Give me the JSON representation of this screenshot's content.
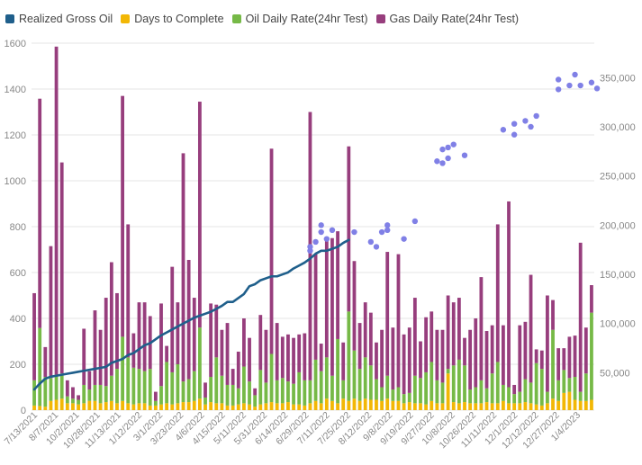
{
  "colors": {
    "gross_oil": "#1f5f8b",
    "days_to_complete": "#f2b705",
    "oil_rate": "#76b947",
    "gas_rate": "#973e7d",
    "points": "#8080e6",
    "grid": "#e6e6e6",
    "tick": "#888888"
  },
  "legend": [
    {
      "label": "Realized Gross Oil",
      "color": "#1f5f8b"
    },
    {
      "label": "Days to Complete",
      "color": "#f2b705"
    },
    {
      "label": "Oil Daily Rate(24hr Test)",
      "color": "#76b947"
    },
    {
      "label": "Gas Daily Rate(24hr Test)",
      "color": "#973e7d"
    }
  ],
  "chart_data": {
    "type": "bar",
    "stacked": true,
    "legend_position": "top-left",
    "grid": true,
    "y_left": {
      "min": 0,
      "max": 1600,
      "ticks": [
        0,
        200,
        400,
        600,
        800,
        1000,
        1200,
        1400,
        1600
      ]
    },
    "y_right": {
      "min": 12000,
      "max": 385000,
      "ticks": [
        "50,000",
        "100,000",
        "150,000",
        "200,000",
        "250,000",
        "300,000",
        "350,000"
      ],
      "tick_values": [
        50000,
        100000,
        150000,
        200000,
        250000,
        300000,
        350000
      ]
    },
    "x_tick_labels": [
      "7/13/2021",
      "8/7/2021",
      "10/2/2021",
      "10/28/2021",
      "11/13/2021",
      "1/12/2022",
      "3/1/2022",
      "3/23/2022",
      "4/6/2022",
      "4/15/2022",
      "5/11/2022",
      "5/31/2022",
      "6/14/2022",
      "6/29/2022",
      "7/11/2022",
      "7/25/2022",
      "8/12/2022",
      "9/8/2022",
      "9/19/2022",
      "9/27/2022",
      "10/8/2022",
      "10/26/2022",
      "11/11/2022",
      "12/1/2022",
      "12/12/2022",
      "12/27/2022",
      "1/4/2023"
    ],
    "bars": [
      {
        "days": 20,
        "oil": 110,
        "gas": 380
      },
      {
        "days": 18,
        "oil": 340,
        "gas": 1000
      },
      {
        "days": 15,
        "oil": 130,
        "gas": 130
      },
      {
        "days": 40,
        "oil": 100,
        "gas": 575
      },
      {
        "days": 45,
        "oil": 110,
        "gas": 1430
      },
      {
        "days": 50,
        "oil": 110,
        "gas": 920
      },
      {
        "days": 30,
        "oil": 30,
        "gas": 70
      },
      {
        "days": 30,
        "oil": 20,
        "gas": 50
      },
      {
        "days": 25,
        "oil": 20,
        "gas": 20
      },
      {
        "days": 30,
        "oil": 80,
        "gas": 245
      },
      {
        "days": 40,
        "oil": 50,
        "gas": 80
      },
      {
        "days": 40,
        "oil": 70,
        "gas": 325
      },
      {
        "days": 30,
        "oil": 80,
        "gas": 240
      },
      {
        "days": 35,
        "oil": 70,
        "gas": 385
      },
      {
        "days": 40,
        "oil": 110,
        "gas": 495
      },
      {
        "days": 30,
        "oil": 150,
        "gas": 330
      },
      {
        "days": 40,
        "oil": 280,
        "gas": 1050
      },
      {
        "days": 30,
        "oil": 200,
        "gas": 580
      },
      {
        "days": 25,
        "oil": 160,
        "gas": 150
      },
      {
        "days": 30,
        "oil": 150,
        "gas": 290
      },
      {
        "days": 30,
        "oil": 140,
        "gas": 300
      },
      {
        "days": 20,
        "oil": 160,
        "gas": 230
      },
      {
        "days": 20,
        "oil": 20,
        "gas": 40
      },
      {
        "days": 25,
        "oil": 80,
        "gas": 360
      },
      {
        "days": 30,
        "oil": 180,
        "gas": 70
      },
      {
        "days": 25,
        "oil": 140,
        "gas": 460
      },
      {
        "days": 30,
        "oil": 170,
        "gas": 270
      },
      {
        "days": 35,
        "oil": 90,
        "gas": 995
      },
      {
        "days": 35,
        "oil": 100,
        "gas": 520
      },
      {
        "days": 40,
        "oil": 130,
        "gas": 320
      },
      {
        "days": 50,
        "oil": 310,
        "gas": 985
      },
      {
        "days": 25,
        "oil": 30,
        "gas": 65
      },
      {
        "days": 35,
        "oil": 110,
        "gas": 320
      },
      {
        "days": 30,
        "oil": 200,
        "gas": 230
      },
      {
        "days": 30,
        "oil": 120,
        "gas": 200
      },
      {
        "days": 20,
        "oil": 90,
        "gas": 270
      },
      {
        "days": 20,
        "oil": 90,
        "gas": 70
      },
      {
        "days": 25,
        "oil": 70,
        "gas": 160
      },
      {
        "days": 30,
        "oil": 160,
        "gas": 210
      },
      {
        "days": 25,
        "oil": 100,
        "gas": 190
      },
      {
        "days": 15,
        "oil": 50,
        "gas": 30
      },
      {
        "days": 25,
        "oil": 150,
        "gas": 240
      },
      {
        "days": 30,
        "oil": 90,
        "gas": 230
      },
      {
        "days": 35,
        "oil": 210,
        "gas": 895
      },
      {
        "days": 30,
        "oil": 100,
        "gas": 250
      },
      {
        "days": 30,
        "oil": 110,
        "gas": 180
      },
      {
        "days": 35,
        "oil": 90,
        "gas": 205
      },
      {
        "days": 25,
        "oil": 90,
        "gas": 200
      },
      {
        "days": 25,
        "oil": 140,
        "gas": 165
      },
      {
        "days": 20,
        "oil": 110,
        "gas": 205
      },
      {
        "days": 30,
        "oil": 100,
        "gas": 1170
      },
      {
        "days": 40,
        "oil": 180,
        "gas": 460
      },
      {
        "days": 30,
        "oil": 140,
        "gas": 120
      },
      {
        "days": 50,
        "oil": 180,
        "gas": 510
      },
      {
        "days": 40,
        "oil": 110,
        "gas": 600
      },
      {
        "days": 30,
        "oil": 280,
        "gas": 470
      },
      {
        "days": 50,
        "oil": 80,
        "gas": 165
      },
      {
        "days": 40,
        "oil": 390,
        "gas": 720
      },
      {
        "days": 50,
        "oil": 210,
        "gas": 390
      },
      {
        "days": 40,
        "oil": 140,
        "gas": 200
      },
      {
        "days": 50,
        "oil": 180,
        "gas": 240
      },
      {
        "days": 45,
        "oil": 150,
        "gas": 230
      },
      {
        "days": 45,
        "oil": 90,
        "gas": 160
      },
      {
        "days": 40,
        "oil": 60,
        "gas": 250
      },
      {
        "days": 50,
        "oil": 100,
        "gas": 540
      },
      {
        "days": 40,
        "oil": 50,
        "gas": 270
      },
      {
        "days": 40,
        "oil": 60,
        "gas": 580
      },
      {
        "days": 30,
        "oil": 40,
        "gas": 260
      },
      {
        "days": 35,
        "oil": 40,
        "gas": 285
      },
      {
        "days": 30,
        "oil": 120,
        "gas": 340
      },
      {
        "days": 30,
        "oil": 110,
        "gas": 160
      },
      {
        "days": 25,
        "oil": 140,
        "gas": 240
      },
      {
        "days": 40,
        "oil": 170,
        "gas": 220
      },
      {
        "days": 30,
        "oil": 100,
        "gas": 220
      },
      {
        "days": 30,
        "oil": 90,
        "gas": 230
      },
      {
        "days": 160,
        "oil": 20,
        "gas": 320
      },
      {
        "days": 35,
        "oil": 160,
        "gas": 275
      },
      {
        "days": 30,
        "oil": 190,
        "gas": 270
      },
      {
        "days": 35,
        "oil": 160,
        "gas": 120
      },
      {
        "days": 30,
        "oil": 60,
        "gas": 260
      },
      {
        "days": 30,
        "oil": 70,
        "gas": 300
      },
      {
        "days": 30,
        "oil": 100,
        "gas": 450
      },
      {
        "days": 35,
        "oil": 60,
        "gas": 250
      },
      {
        "days": 30,
        "oil": 130,
        "gas": 210
      },
      {
        "days": 30,
        "oil": 180,
        "gas": 600
      },
      {
        "days": 40,
        "oil": 70,
        "gas": 260
      },
      {
        "days": 30,
        "oil": 70,
        "gas": 810
      },
      {
        "days": 30,
        "oil": 40,
        "gas": 40
      },
      {
        "days": 30,
        "oil": 50,
        "gas": 290
      },
      {
        "days": 35,
        "oil": 100,
        "gas": 250
      },
      {
        "days": 30,
        "oil": 90,
        "gas": 470
      },
      {
        "days": 25,
        "oil": 180,
        "gas": 60
      },
      {
        "days": 20,
        "oil": 160,
        "gas": 80
      },
      {
        "days": 30,
        "oil": 50,
        "gas": 420
      },
      {
        "days": 50,
        "oil": 300,
        "gas": 130
      },
      {
        "days": 40,
        "oil": 90,
        "gas": 140
      },
      {
        "days": 75,
        "oil": 100,
        "gas": 95
      },
      {
        "days": 80,
        "oil": 60,
        "gas": 180
      },
      {
        "days": 45,
        "oil": 100,
        "gas": 180
      },
      {
        "days": 40,
        "oil": 40,
        "gas": 650
      },
      {
        "days": 40,
        "oil": 120,
        "gas": 200
      },
      {
        "days": 45,
        "oil": 380,
        "gas": 120
      }
    ],
    "realized_gross_oil": [
      33000,
      39000,
      44000,
      46000,
      47000,
      48000,
      49000,
      50000,
      51000,
      52000,
      53000,
      54000,
      55000,
      56000,
      60000,
      62000,
      64000,
      68000,
      70000,
      74000,
      78000,
      80000,
      84000,
      88000,
      91000,
      94000,
      97000,
      100000,
      103000,
      106000,
      108000,
      110000,
      112000,
      115000,
      118000,
      122000,
      122000,
      126000,
      130000,
      138000,
      140000,
      144000,
      146000,
      148000,
      148000,
      150000,
      152000,
      156000,
      159000,
      162000,
      166000,
      171000,
      174000,
      174000,
      176000,
      178000,
      182000,
      185000
    ],
    "scatter_points": [
      {
        "bar": 50,
        "y": 178000
      },
      {
        "bar": 50,
        "y": 174000
      },
      {
        "bar": 51,
        "y": 183000
      },
      {
        "bar": 52,
        "y": 193000
      },
      {
        "bar": 52,
        "y": 200000
      },
      {
        "bar": 53,
        "y": 186000
      },
      {
        "bar": 54,
        "y": 195000
      },
      {
        "bar": 58,
        "y": 193000
      },
      {
        "bar": 61,
        "y": 183000
      },
      {
        "bar": 62,
        "y": 178000
      },
      {
        "bar": 63,
        "y": 193000
      },
      {
        "bar": 64,
        "y": 195000
      },
      {
        "bar": 64,
        "y": 200000
      },
      {
        "bar": 67,
        "y": 186000
      },
      {
        "bar": 69,
        "y": 204000
      },
      {
        "bar": 73,
        "y": 265000
      },
      {
        "bar": 74,
        "y": 263000
      },
      {
        "bar": 74,
        "y": 277000
      },
      {
        "bar": 75,
        "y": 279000
      },
      {
        "bar": 75,
        "y": 268000
      },
      {
        "bar": 76,
        "y": 282000
      },
      {
        "bar": 78,
        "y": 271000
      },
      {
        "bar": 85,
        "y": 297000
      },
      {
        "bar": 87,
        "y": 303000
      },
      {
        "bar": 87,
        "y": 292000
      },
      {
        "bar": 89,
        "y": 306000
      },
      {
        "bar": 90,
        "y": 300000
      },
      {
        "bar": 91,
        "y": 311000
      },
      {
        "bar": 95,
        "y": 348000
      },
      {
        "bar": 95,
        "y": 338000
      },
      {
        "bar": 97,
        "y": 342000
      },
      {
        "bar": 98,
        "y": 353000
      },
      {
        "bar": 99,
        "y": 342000
      },
      {
        "bar": 101,
        "y": 345000
      },
      {
        "bar": 102,
        "y": 339000
      }
    ]
  }
}
